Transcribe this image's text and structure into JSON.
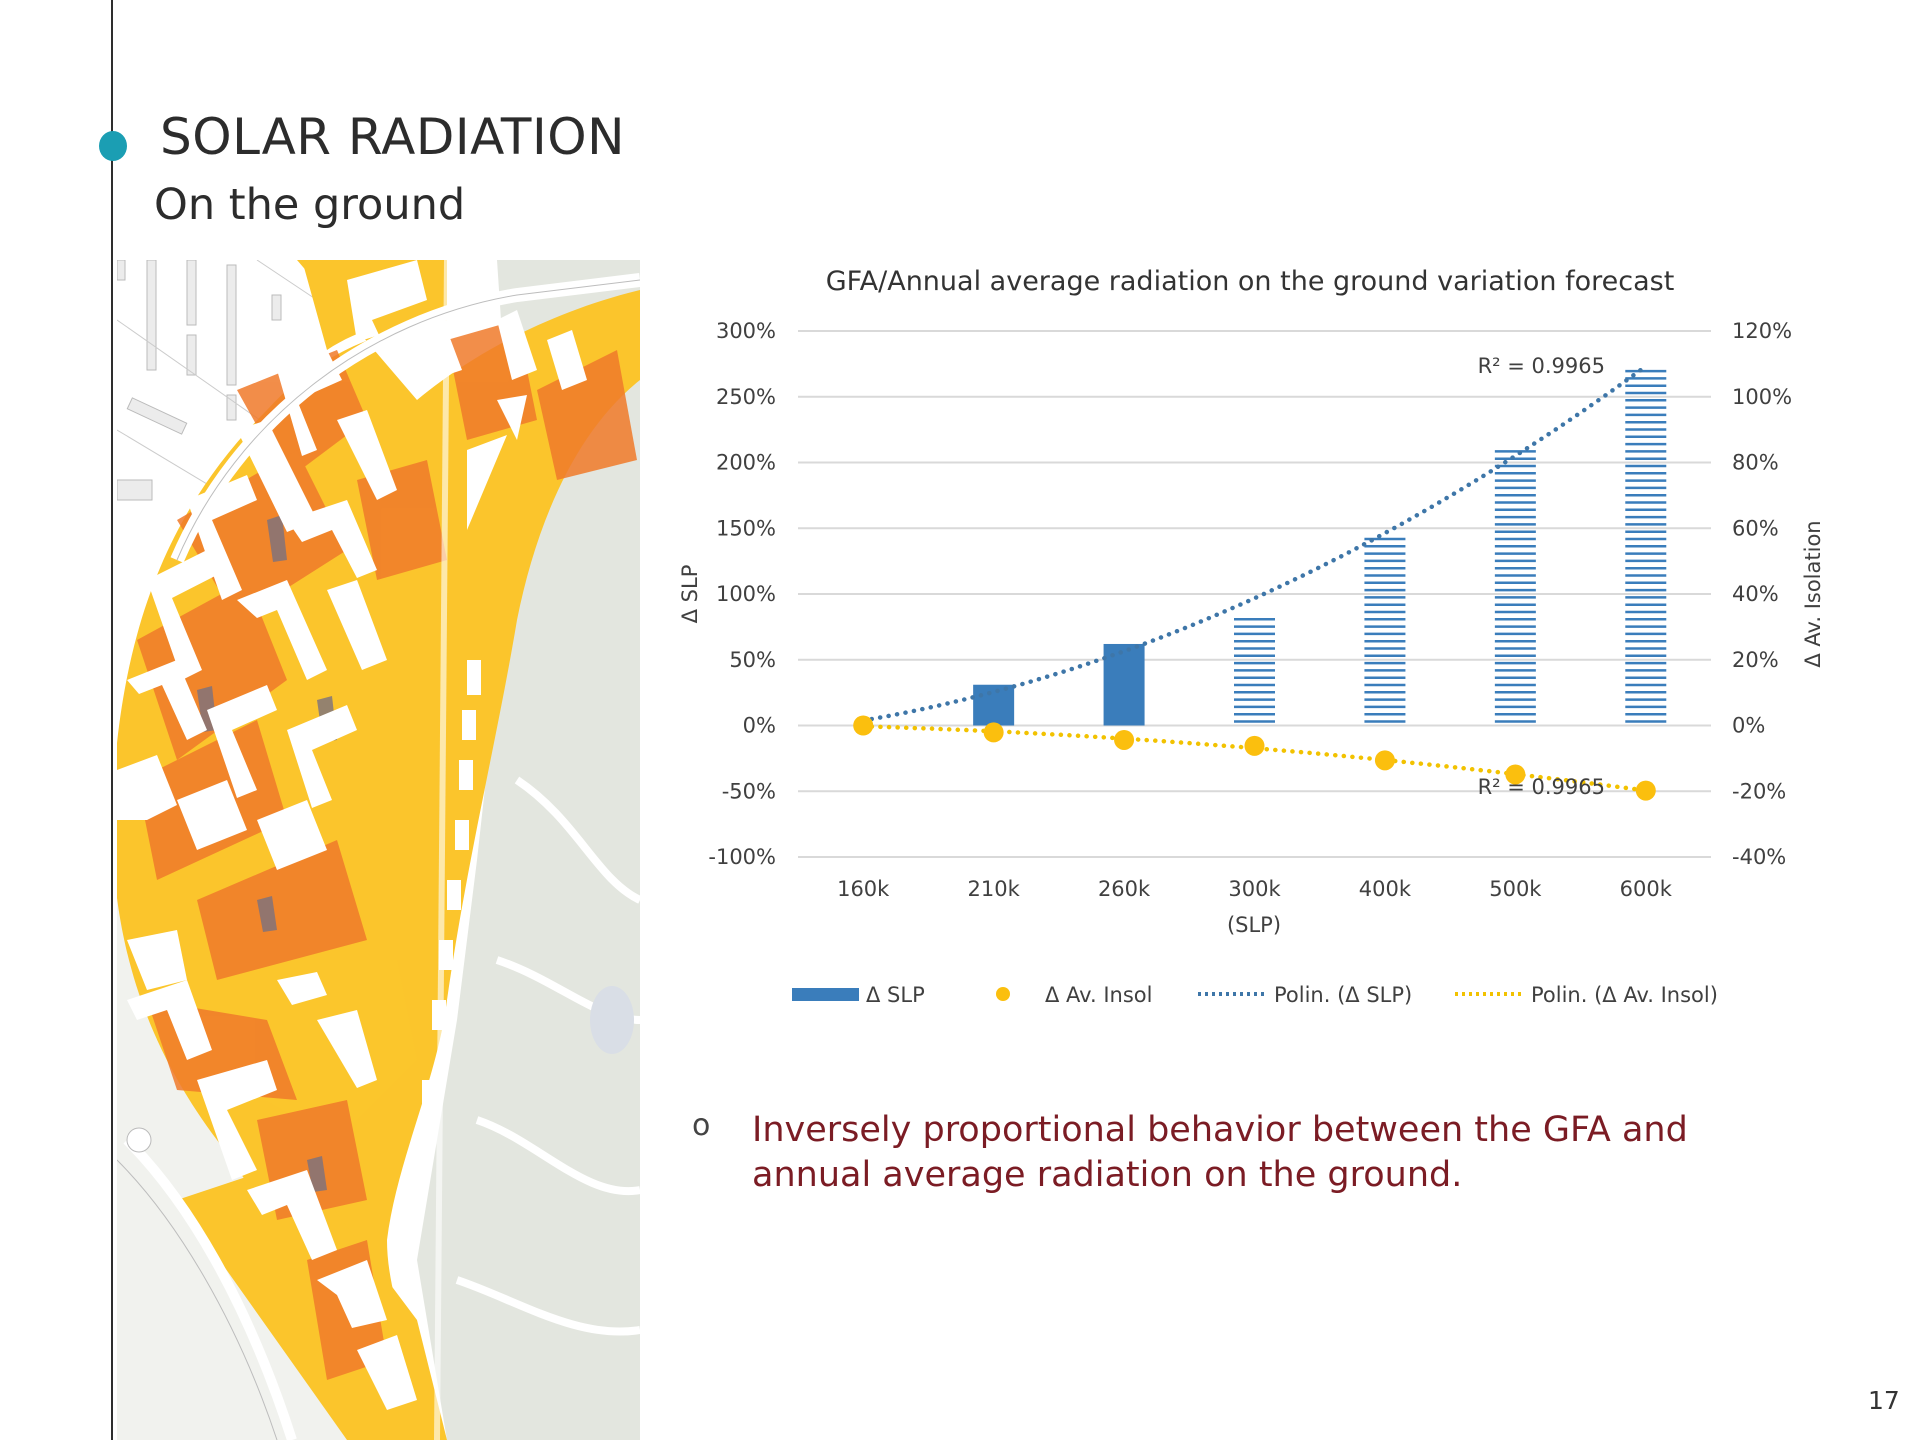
{
  "slide": {
    "title": "SOLAR RADIATION",
    "subtitle": "On the ground",
    "page_number": "17",
    "accent_color": "#1b9eb3",
    "bullet_marker": "o",
    "bullet_text": "Inversely proportional behavior between the GFA and annual average radiation on the ground.",
    "bullet_color": "#7b1c24",
    "map_image": "solar-radiation-ground-map"
  },
  "chart_data": {
    "type": "bar",
    "title": "GFA/Annual average radiation on the ground variation forecast",
    "xlabel": "(SLP)",
    "ylabel": "Δ SLP",
    "y2label": "Δ Av. Isolation",
    "categories": [
      "160k",
      "210k",
      "260k",
      "300k",
      "400k",
      "500k",
      "600k"
    ],
    "ylim": [
      -100,
      300
    ],
    "y_ticks": [
      "300%",
      "250%",
      "200%",
      "150%",
      "100%",
      "50%",
      "0%",
      "-50%",
      "-100%"
    ],
    "y_tick_values": [
      300,
      250,
      200,
      150,
      100,
      50,
      0,
      -50,
      -100
    ],
    "y2lim": [
      -40,
      120
    ],
    "y2_ticks": [
      "120%",
      "100%",
      "80%",
      "60%",
      "40%",
      "20%",
      "0%",
      "-20%",
      "-40%"
    ],
    "y2_tick_values": [
      120,
      100,
      80,
      60,
      40,
      20,
      0,
      -20,
      -40
    ],
    "grid": true,
    "series": [
      {
        "name": "Δ SLP",
        "kind": "bar",
        "axis": "left",
        "color": "#3a7dbb",
        "values": [
          0,
          31,
          62,
          86,
          147,
          209,
          272
        ],
        "pattern": [
          "solid",
          "solid",
          "solid",
          "striped",
          "striped",
          "striped",
          "striped"
        ]
      },
      {
        "name": "Δ Av. Insol",
        "kind": "scatter",
        "axis": "right",
        "color": "#fbbf0e",
        "values": [
          0,
          -2.1,
          -4.4,
          -6.2,
          -10.6,
          -14.9,
          -19.8
        ]
      },
      {
        "name": "Polin. (Δ SLP)",
        "kind": "trendline",
        "axis": "left",
        "color": "#3e76a8",
        "r2_label": "R² = 0.9965"
      },
      {
        "name": "Polin. (Δ Av. Insol)",
        "kind": "trendline",
        "axis": "right",
        "color": "#f2c200",
        "r2_label": "R² = 0.9965"
      }
    ],
    "legend": [
      "Δ SLP",
      "Δ Av. Insol",
      "Polin. (Δ SLP)",
      "Polin. (Δ Av. Insol)"
    ],
    "legend_position": "bottom"
  }
}
